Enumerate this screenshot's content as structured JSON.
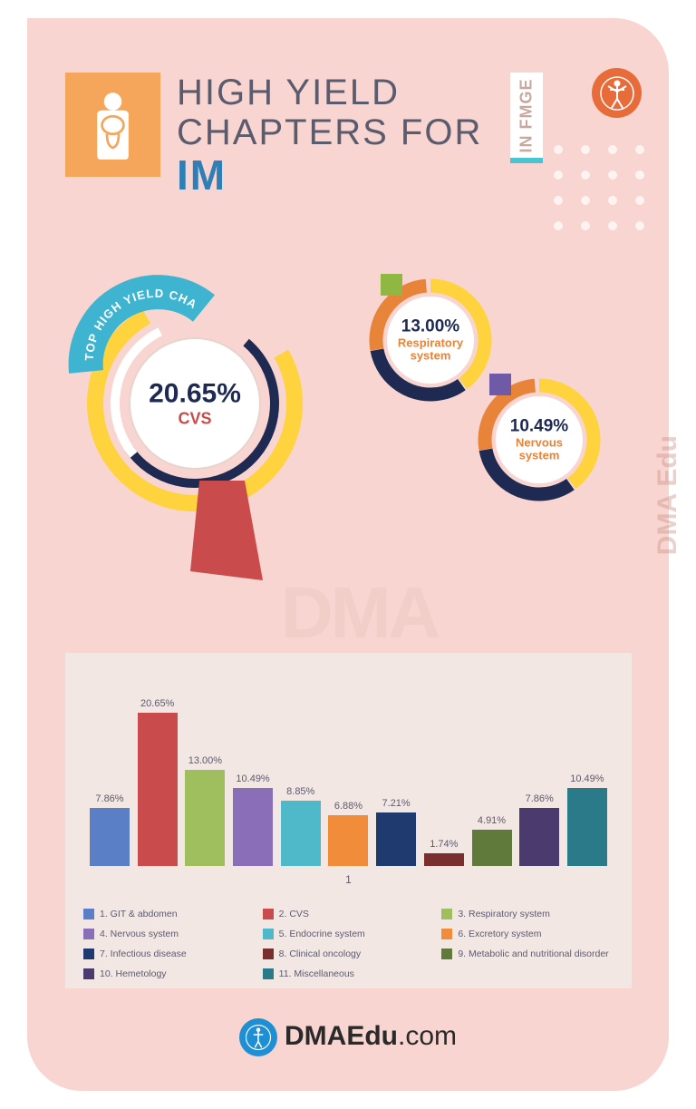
{
  "title_line1": "HIGH YIELD",
  "title_line2": "CHAPTERS FOR",
  "title_subject": "IM",
  "fmge_label": "IN FMGE",
  "watermark_side": "DMA Edu",
  "watermark_big": "DMA",
  "top_chapter_badge": "TOP HIGH YIELD CHAPTER",
  "rings": {
    "main": {
      "pct": "20.65%",
      "name": "CVS",
      "colors": {
        "outer1": "#3fb4d1",
        "outer2": "#ffd33d",
        "inner": "#1f2a52",
        "accent": "#c94b4b"
      }
    },
    "r1": {
      "pct": "13.00%",
      "name": "Respiratory system",
      "tab_color": "#8fb843",
      "colors": [
        "#ffd33d",
        "#e8833a",
        "#1f2a52"
      ]
    },
    "r2": {
      "pct": "10.49%",
      "name": "Nervous system",
      "tab_color": "#6f5aa8",
      "colors": [
        "#ffd33d",
        "#e8833a",
        "#1f2a52"
      ]
    }
  },
  "bar_chart": {
    "type": "bar",
    "max": 22,
    "axis_label": "1",
    "bars": [
      {
        "label": "7.86%",
        "value": 7.86,
        "color": "#5b7fc7"
      },
      {
        "label": "20.65%",
        "value": 20.65,
        "color": "#c94b4b"
      },
      {
        "label": "13.00%",
        "value": 13.0,
        "color": "#9fbf5e"
      },
      {
        "label": "10.49%",
        "value": 10.49,
        "color": "#8a6fb8"
      },
      {
        "label": "8.85%",
        "value": 8.85,
        "color": "#4fb8c9"
      },
      {
        "label": "6.88%",
        "value": 6.88,
        "color": "#f08c3a"
      },
      {
        "label": "7.21%",
        "value": 7.21,
        "color": "#1f3a6e"
      },
      {
        "label": "1.74%",
        "value": 1.74,
        "color": "#7a2f2f"
      },
      {
        "label": "4.91%",
        "value": 4.91,
        "color": "#5f7a3a"
      },
      {
        "label": "7.86%",
        "value": 7.86,
        "color": "#4a3a6e"
      },
      {
        "label": "10.49%",
        "value": 10.49,
        "color": "#2a7a8a"
      }
    ],
    "legend": [
      {
        "color": "#5b7fc7",
        "text": "1. GIT & abdomen"
      },
      {
        "color": "#c94b4b",
        "text": "2. CVS"
      },
      {
        "color": "#9fbf5e",
        "text": "3.    Respiratory system"
      },
      {
        "color": "#8a6fb8",
        "text": "4. Nervous system"
      },
      {
        "color": "#4fb8c9",
        "text": "5. Endocrine system"
      },
      {
        "color": "#f08c3a",
        "text": "6. Excretory system"
      },
      {
        "color": "#1f3a6e",
        "text": "7. Infectious disease"
      },
      {
        "color": "#7a2f2f",
        "text": "8.    Clinical oncology"
      },
      {
        "color": "#5f7a3a",
        "text": "9. Metabolic and nutritional disorder"
      },
      {
        "color": "#4a3a6e",
        "text": "10. Hemetology"
      },
      {
        "color": "#2a7a8a",
        "text": "11. Miscellaneous"
      }
    ]
  },
  "footer": {
    "brand_bold": "DMAEdu",
    "brand_thin": ".com"
  }
}
